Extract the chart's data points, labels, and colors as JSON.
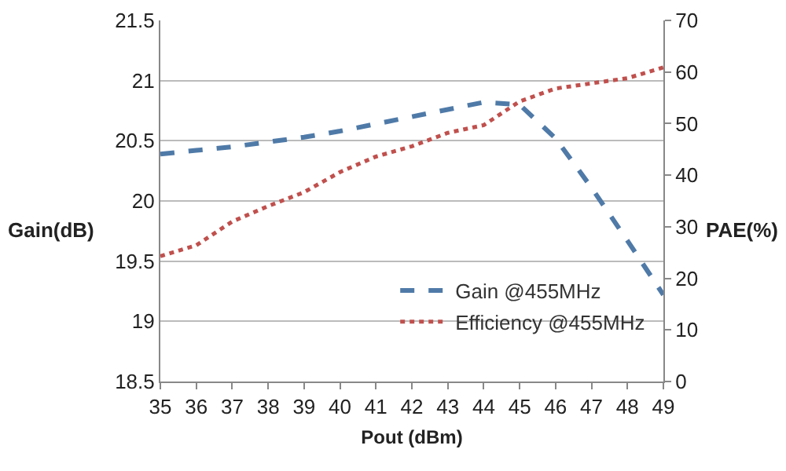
{
  "chart_data": {
    "type": "line",
    "xlabel": "Pout (dBm)",
    "ylabel": "Gain(dB)",
    "y2label": "PAE(%)",
    "x": [
      35,
      36,
      37,
      38,
      39,
      40,
      41,
      42,
      43,
      44,
      45,
      46,
      47,
      48,
      49
    ],
    "series": [
      {
        "name": "Gain @455MHz",
        "color": "#4f7aa8",
        "line_style": "dashed",
        "values": [
          20.39,
          20.42,
          20.45,
          20.49,
          20.53,
          20.58,
          20.64,
          20.7,
          20.76,
          20.82,
          20.8,
          20.52,
          20.11,
          19.67,
          19.22
        ]
      },
      {
        "name": "Efficiency @455MHz",
        "color": "#c0504d",
        "line_style": "dotted",
        "axis": "y2",
        "values": [
          24.3,
          26.4,
          31,
          34,
          36.7,
          40.6,
          43.6,
          45.6,
          48.2,
          49.7,
          54.3,
          56.8,
          57.8,
          58.8,
          60.9
        ]
      }
    ],
    "xlim": [
      35,
      49
    ],
    "xticks": [
      35,
      36,
      37,
      38,
      39,
      40,
      41,
      42,
      43,
      44,
      45,
      46,
      47,
      48,
      49
    ],
    "ylim": [
      18.5,
      21.5
    ],
    "yticks": [
      18.5,
      19,
      19.5,
      20,
      20.5,
      21,
      21.5
    ],
    "y2lim": [
      0,
      70
    ],
    "y2ticks": [
      0,
      10,
      20,
      30,
      40,
      50,
      60,
      70
    ],
    "grid": "y",
    "legend": "bottom right",
    "marker": "none"
  }
}
